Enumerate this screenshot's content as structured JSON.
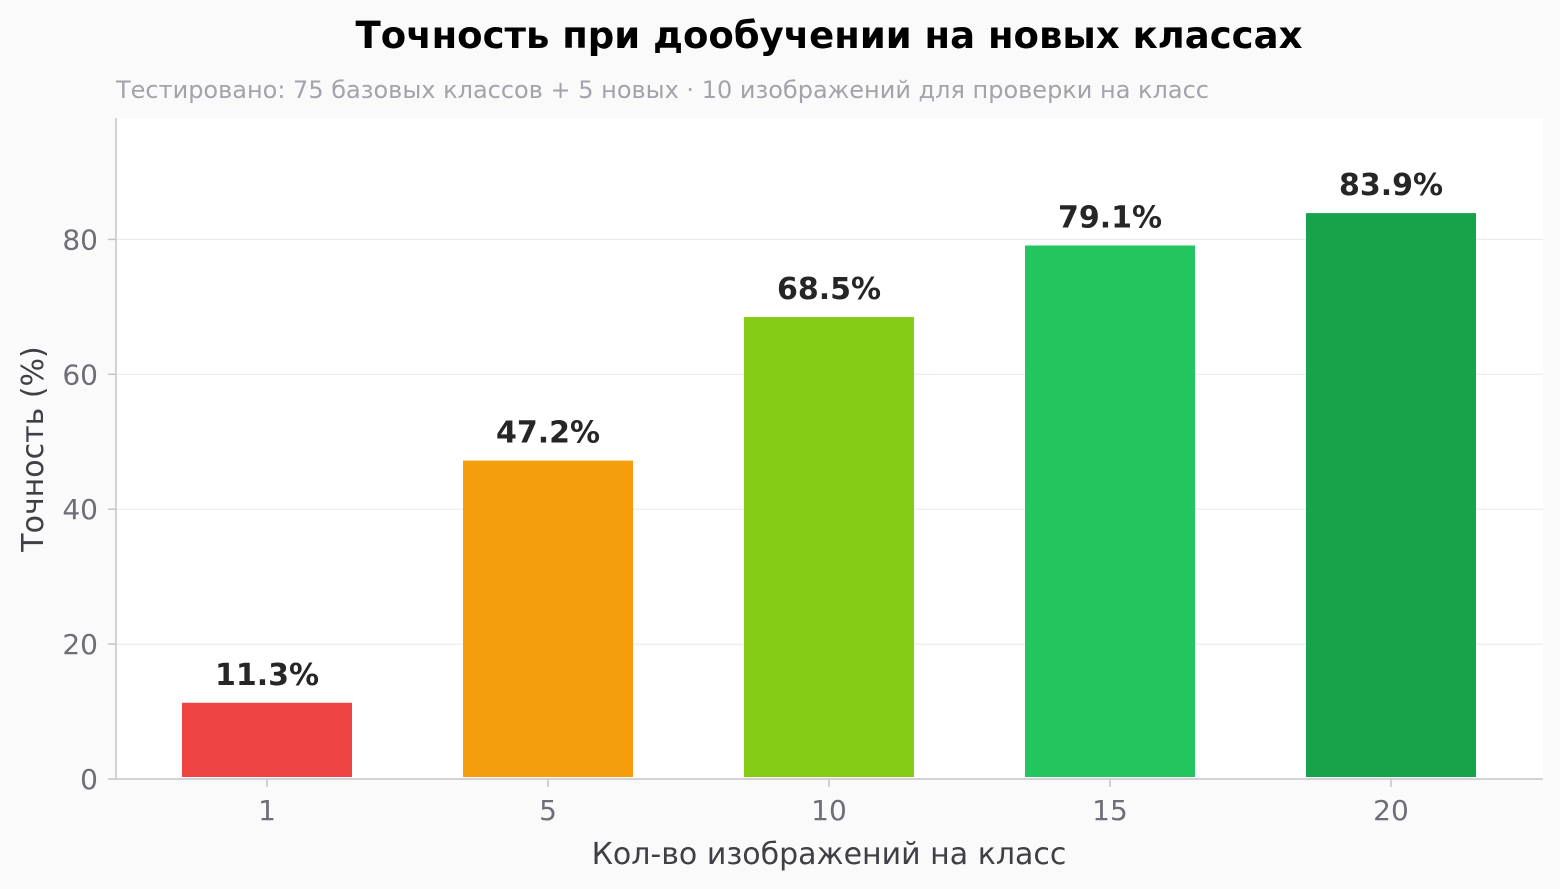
{
  "chart_data": {
    "type": "bar",
    "title": "Точность при дообучении на новых классах",
    "subtitle": "Тестировано: 75 базовых классов + 5 новых · 10 изображений для проверки на класс",
    "xlabel": "Кол-во изображений на класс",
    "ylabel": "Точность (%)",
    "categories": [
      "1",
      "5",
      "10",
      "15",
      "20"
    ],
    "values": [
      11.3,
      47.2,
      68.5,
      79.1,
      83.9
    ],
    "value_labels": [
      "11.3%",
      "47.2%",
      "68.5%",
      "79.1%",
      "83.9%"
    ],
    "bar_colors": [
      "#ef4444",
      "#f59e0b",
      "#84cc16",
      "#22c55e",
      "#16a34a"
    ],
    "yticks": [
      0,
      20,
      40,
      60,
      80
    ],
    "ylim": [
      0,
      98
    ],
    "grid": "horizontal",
    "legend": "none"
  }
}
